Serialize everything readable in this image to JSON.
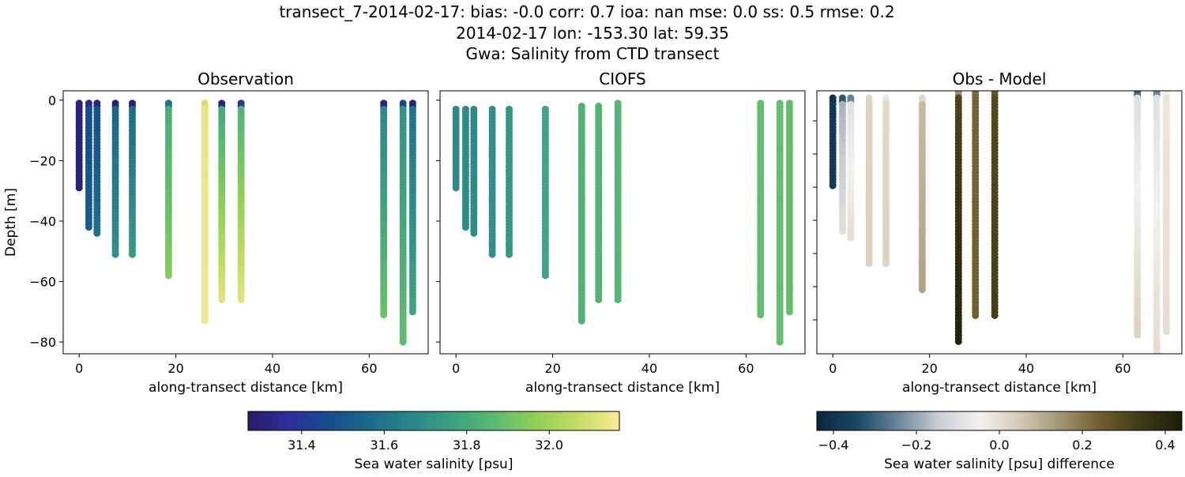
{
  "title": {
    "line1": "transect_7-2014-02-17: bias: -0.0  corr: 0.7  ioa: nan  mse: 0.0  ss: 0.5  rmse: 0.2",
    "line2": "2014-02-17 lon: -153.30 lat: 59.35",
    "line3": "Gwa: Salinity from CTD transect"
  },
  "chart_data": [
    {
      "type": "scatter",
      "title": "Observation",
      "xlabel": "along-transect distance [km]",
      "ylabel": "Depth [m]",
      "xlim": [
        -3.3,
        72.2
      ],
      "ylim": [
        -83.9,
        3.1
      ],
      "xticks": [
        0,
        20,
        40,
        60
      ],
      "yticks": [
        0,
        -20,
        -40,
        -60,
        -80
      ],
      "colorbar": "salinity",
      "stations": [
        {
          "x": 0,
          "depth_top": -1,
          "depth_bottom": -29,
          "value_top": 31.3,
          "value_bottom": 31.3
        },
        {
          "x": 2,
          "depth_top": -1,
          "depth_bottom": -42,
          "value_top": 31.35,
          "value_bottom": 31.52
        },
        {
          "x": 3.7,
          "depth_top": -1,
          "depth_bottom": -44,
          "value_top": 31.3,
          "value_bottom": 31.58
        },
        {
          "x": 7.5,
          "depth_top": -1,
          "depth_bottom": -51,
          "value_top": 31.3,
          "value_bottom": 31.7
        },
        {
          "x": 11,
          "depth_top": -1,
          "depth_bottom": -51,
          "value_top": 31.3,
          "value_bottom": 31.74
        },
        {
          "x": 18.5,
          "depth_top": -1,
          "depth_bottom": -58,
          "value_top": 31.6,
          "value_bottom": 31.95
        },
        {
          "x": 26,
          "depth_top": -1,
          "depth_bottom": -73,
          "value_top": 32.1,
          "value_bottom": 32.15
        },
        {
          "x": 29.5,
          "depth_top": -1,
          "depth_bottom": -66,
          "value_top": 31.3,
          "value_bottom": 32.12
        },
        {
          "x": 33.5,
          "depth_top": -1,
          "depth_bottom": -66,
          "value_top": 31.4,
          "value_bottom": 32.12
        },
        {
          "x": 63,
          "depth_top": -1,
          "depth_bottom": -71,
          "value_top": 31.3,
          "value_bottom": 31.9
        },
        {
          "x": 67,
          "depth_top": -1,
          "depth_bottom": -80,
          "value_top": 31.45,
          "value_bottom": 31.88
        },
        {
          "x": 69,
          "depth_top": -1,
          "depth_bottom": -70,
          "value_top": 31.3,
          "value_bottom": 31.78
        }
      ]
    },
    {
      "type": "scatter",
      "title": "CIOFS",
      "xlabel": "along-transect distance [km]",
      "xlim": [
        -3.3,
        72.2
      ],
      "ylim": [
        -83.9,
        3.1
      ],
      "xticks": [
        0,
        20,
        40,
        60
      ],
      "yticks": [
        0,
        -20,
        -40,
        -60,
        -80
      ],
      "colorbar": "salinity",
      "stations": [
        {
          "x": 0,
          "depth_top": -3,
          "depth_bottom": -29,
          "value_top": 31.68,
          "value_bottom": 31.68
        },
        {
          "x": 2,
          "depth_top": -3,
          "depth_bottom": -42,
          "value_top": 31.68,
          "value_bottom": 31.68
        },
        {
          "x": 3.7,
          "depth_top": -3,
          "depth_bottom": -44,
          "value_top": 31.68,
          "value_bottom": 31.69
        },
        {
          "x": 7.5,
          "depth_top": -3,
          "depth_bottom": -51,
          "value_top": 31.7,
          "value_bottom": 31.7
        },
        {
          "x": 11,
          "depth_top": -3,
          "depth_bottom": -51,
          "value_top": 31.73,
          "value_bottom": 31.73
        },
        {
          "x": 18.5,
          "depth_top": -3,
          "depth_bottom": -58,
          "value_top": 31.78,
          "value_bottom": 31.78
        },
        {
          "x": 26,
          "depth_top": -2,
          "depth_bottom": -73,
          "value_top": 31.83,
          "value_bottom": 31.83
        },
        {
          "x": 29.5,
          "depth_top": -2,
          "depth_bottom": -66,
          "value_top": 31.84,
          "value_bottom": 31.84
        },
        {
          "x": 33.5,
          "depth_top": -1,
          "depth_bottom": -66,
          "value_top": 31.85,
          "value_bottom": 31.85
        },
        {
          "x": 63,
          "depth_top": -1,
          "depth_bottom": -71,
          "value_top": 31.88,
          "value_bottom": 31.88
        },
        {
          "x": 67,
          "depth_top": -1,
          "depth_bottom": -80,
          "value_top": 31.88,
          "value_bottom": 31.88
        },
        {
          "x": 69,
          "depth_top": -1,
          "depth_bottom": -70,
          "value_top": 31.88,
          "value_bottom": 31.88
        }
      ]
    },
    {
      "type": "scatter",
      "title": "Obs - Model",
      "xlabel": "along-transect distance [km]",
      "xlim": [
        -3.3,
        72.2
      ],
      "ylim": [
        -79.8,
        1.2
      ],
      "xticks": [
        0,
        20,
        40,
        60
      ],
      "colorbar": "difference",
      "stations": [
        {
          "x": 0,
          "depth_top": -1,
          "depth_bottom": -28,
          "value_top": -0.4,
          "value_bottom": -0.38
        },
        {
          "x": 2,
          "depth_top": -1,
          "depth_bottom": -42,
          "value_top": -0.32,
          "value_bottom": -0.1
        },
        {
          "x": 3.7,
          "depth_top": -1,
          "depth_bottom": -44,
          "value_top": -0.25,
          "value_bottom": 0.0
        },
        {
          "x": 7.5,
          "depth_top": -1,
          "depth_bottom": -52,
          "value_top": 0.02,
          "value_bottom": 0.03
        },
        {
          "x": 11,
          "depth_top": -1,
          "depth_bottom": -52,
          "value_top": -0.02,
          "value_bottom": 0.03
        },
        {
          "x": 18.5,
          "depth_top": -1,
          "depth_bottom": -60,
          "value_top": 0.01,
          "value_bottom": 0.12
        },
        {
          "x": 26,
          "depth_top": 1,
          "depth_bottom": -76.5,
          "value_top": 0.15,
          "value_bottom": 0.42
        },
        {
          "x": 29.5,
          "depth_top": 1,
          "depth_bottom": -68.5,
          "value_top": 0.22,
          "value_bottom": 0.24
        },
        {
          "x": 33.5,
          "depth_top": 1,
          "depth_bottom": -68.5,
          "value_top": 0.25,
          "value_bottom": 0.33
        },
        {
          "x": 63,
          "depth_top": 1,
          "depth_bottom": -74,
          "value_top": -0.3,
          "value_bottom": 0.03
        },
        {
          "x": 67,
          "depth_top": 1,
          "depth_bottom": -84,
          "value_top": -0.25,
          "value_bottom": 0.01
        },
        {
          "x": 69,
          "depth_top": 1,
          "depth_bottom": -73,
          "value_top": -0.05,
          "value_bottom": 0.0
        }
      ]
    }
  ],
  "colorbars": {
    "salinity": {
      "label": "Sea water salinity [psu]",
      "range": [
        31.27,
        32.17
      ],
      "ticks": [
        31.4,
        31.6,
        31.8,
        32.0
      ],
      "tick_labels": [
        "31.4",
        "31.6",
        "31.8",
        "32.0"
      ],
      "colors": [
        "#2a1a6c",
        "#2c2e9c",
        "#134f8d",
        "#1d6b8a",
        "#2c878a",
        "#3da17f",
        "#5dbb70",
        "#8fd055",
        "#c6dc63",
        "#fbea9b"
      ]
    },
    "difference": {
      "label": "Sea water salinity [psu] difference",
      "range": [
        -0.44,
        0.44
      ],
      "ticks": [
        -0.4,
        -0.2,
        0.0,
        0.2,
        0.4
      ],
      "tick_labels": [
        "−0.4",
        "−0.2",
        "0.0",
        "0.2",
        "0.4"
      ],
      "colors": [
        "#0a2540",
        "#1a4866",
        "#6b8599",
        "#c9ced4",
        "#f4f1ee",
        "#d5cab6",
        "#a29572",
        "#6f5d2a",
        "#3f3a16",
        "#1c1d08"
      ]
    }
  }
}
